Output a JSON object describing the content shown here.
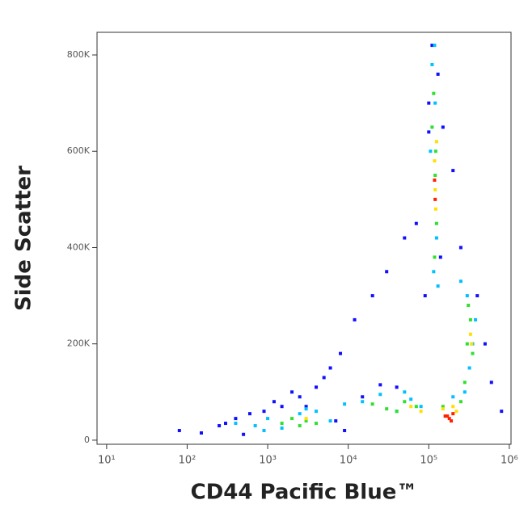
{
  "chart_data": {
    "type": "scatter",
    "x_label": "CD44 Pacific Blue™",
    "y_label": "Side Scatter",
    "xscale": "log",
    "grid": false,
    "xlim": [
      7.6,
      1050000
    ],
    "ylim": [
      -8500,
      847000
    ],
    "xticks": [
      {
        "value": 10,
        "label": "10¹"
      },
      {
        "value": 100,
        "label": "10²"
      },
      {
        "value": 1000,
        "label": "10³"
      },
      {
        "value": 10000,
        "label": "10⁴"
      },
      {
        "value": 100000,
        "label": "10⁵"
      },
      {
        "value": 1000000,
        "label": "10⁶"
      }
    ],
    "yticks": [
      0,
      {
        "value": 200000,
        "label": "200K"
      },
      {
        "value": 400000,
        "label": "400K"
      },
      {
        "value": 600000,
        "label": "600K"
      },
      {
        "value": 800000,
        "label": "800K"
      }
    ],
    "series": [
      {
        "color": "#1010ff",
        "x": [
          80,
          150,
          250,
          400,
          600,
          900,
          1500,
          2500,
          4000,
          6000,
          8000,
          12000,
          20000,
          30000,
          50000,
          70000,
          90000,
          100000,
          110000,
          130000,
          140000,
          100000,
          150000,
          200000,
          250000,
          400000,
          500000,
          600000,
          800000,
          300,
          500,
          1200,
          2000,
          5000,
          15000,
          40000,
          3000,
          7000,
          9000,
          25000
        ],
        "values": [
          20000,
          15000,
          30000,
          45000,
          55000,
          60000,
          70000,
          90000,
          110000,
          150000,
          180000,
          250000,
          300000,
          350000,
          420000,
          450000,
          300000,
          700000,
          820000,
          760000,
          380000,
          640000,
          650000,
          560000,
          400000,
          300000,
          200000,
          120000,
          60000,
          35000,
          12000,
          80000,
          100000,
          130000,
          90000,
          110000,
          70000,
          40000,
          20000,
          115000
        ]
      },
      {
        "color": "#00c0ff",
        "x": [
          400,
          700,
          1000,
          1500,
          2500,
          4000,
          6000,
          15000,
          25000,
          40000,
          60000,
          80000,
          110000,
          120000,
          115000,
          125000,
          105000,
          130000,
          118000,
          300000,
          320000,
          350000,
          280000,
          380000,
          250000,
          200000,
          900,
          3000,
          9000,
          50000
        ],
        "values": [
          35000,
          30000,
          45000,
          25000,
          55000,
          60000,
          40000,
          80000,
          95000,
          60000,
          85000,
          70000,
          780000,
          700000,
          350000,
          420000,
          600000,
          320000,
          820000,
          300000,
          150000,
          200000,
          100000,
          250000,
          330000,
          90000,
          20000,
          65000,
          75000,
          100000
        ]
      },
      {
        "color": "#30e030",
        "x": [
          1500,
          2000,
          3000,
          4000,
          2500,
          20000,
          30000,
          50000,
          70000,
          40000,
          110000,
          120000,
          125000,
          115000,
          118000,
          122000,
          300000,
          330000,
          350000,
          310000,
          280000,
          250000,
          150000
        ],
        "values": [
          35000,
          45000,
          40000,
          35000,
          30000,
          75000,
          65000,
          80000,
          70000,
          60000,
          650000,
          550000,
          450000,
          720000,
          380000,
          600000,
          200000,
          250000,
          180000,
          280000,
          120000,
          80000,
          70000
        ]
      },
      {
        "color": "#ffe000",
        "x": [
          3000,
          60000,
          80000,
          120000,
          118000,
          122000,
          125000,
          330000,
          340000,
          220000,
          150000,
          200000
        ],
        "values": [
          45000,
          70000,
          60000,
          520000,
          580000,
          480000,
          620000,
          220000,
          200000,
          60000,
          65000,
          70000
        ]
      },
      {
        "color": "#ff2000",
        "x": [
          160000,
          180000,
          200000,
          190000,
          170000,
          120000,
          118000
        ],
        "values": [
          50000,
          45000,
          55000,
          40000,
          50000,
          500000,
          540000
        ]
      }
    ]
  }
}
